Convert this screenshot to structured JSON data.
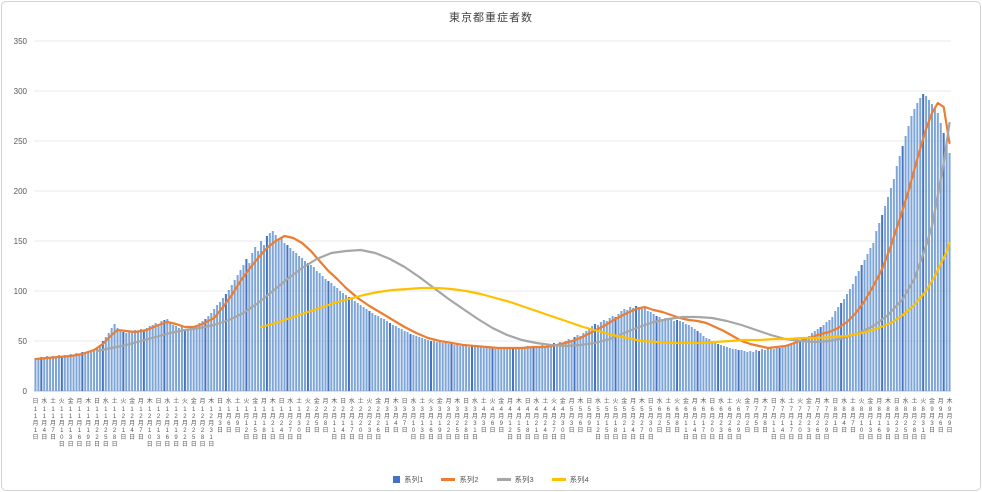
{
  "chart_data": {
    "type": "bar",
    "title": "東京都重症者数",
    "xlabel": "",
    "ylabel": "",
    "ylim": [
      0,
      350
    ],
    "y_ticks": [
      0,
      50,
      100,
      150,
      200,
      250,
      300,
      350
    ],
    "grid": true,
    "legend_position": "bottom",
    "x_label_step_days": 3,
    "x_label_weekdays": "日水土火金月木日水土火金月木日水土火金月木日水土火金月木日水土火金月木日水土火金月木日水土火金月木日水土火金月木日水土火金月木日水土火金月木日水土火金月木日水土火金月木日水土火金月木日水土火金月木日水土火金月木",
    "x_label_dates": [
      "11月1日",
      "11月4日",
      "11月7日",
      "11月10日",
      "11月13日",
      "11月16日",
      "11月19日",
      "11月22日",
      "11月25日",
      "11月28日",
      "12月1日",
      "12月4日",
      "12月7日",
      "12月10日",
      "12月13日",
      "12月16日",
      "12月19日",
      "12月22日",
      "12月25日",
      "12月28日",
      "12月31日",
      "1月3日",
      "1月6日",
      "1月9日",
      "1月12日",
      "1月15日",
      "1月18日",
      "1月21日",
      "1月24日",
      "1月27日",
      "1月30日",
      "2月2日",
      "2月5日",
      "2月8日",
      "2月11日",
      "2月14日",
      "2月17日",
      "2月20日",
      "2月23日",
      "2月26日",
      "3月1日",
      "3月4日",
      "3月7日",
      "3月10日",
      "3月13日",
      "3月16日",
      "3月19日",
      "3月22日",
      "3月25日",
      "3月28日",
      "3月31日",
      "4月3日",
      "4月6日",
      "4月9日",
      "4月12日",
      "4月15日",
      "4月18日",
      "4月21日",
      "4月24日",
      "4月27日",
      "4月30日",
      "5月3日",
      "5月6日",
      "5月9日",
      "5月12日",
      "5月15日",
      "5月18日",
      "5月21日",
      "5月24日",
      "5月27日",
      "5月30日",
      "6月2日",
      "6月5日",
      "6月8日",
      "6月11日",
      "6月14日",
      "6月17日",
      "6月20日",
      "6月23日",
      "6月26日",
      "6月29日",
      "7月2日",
      "7月5日",
      "7月8日",
      "7月11日",
      "7月14日",
      "7月17日",
      "7月20日",
      "7月23日",
      "7月26日",
      "7月29日",
      "8月1日",
      "8月4日",
      "8月7日",
      "8月10日",
      "8月13日",
      "8月16日",
      "8月19日",
      "8月22日",
      "8月25日",
      "8月28日",
      "8月31日",
      "9月3日",
      "9月6日",
      "9月9日"
    ],
    "series": [
      {
        "name": "系列1",
        "type": "bar",
        "color": "#7da5d8",
        "color_dark": "#4472c4",
        "values": [
          33,
          33,
          34,
          33,
          35,
          34,
          35,
          34,
          36,
          35,
          36,
          35,
          37,
          36,
          38,
          37,
          39,
          38,
          40,
          39,
          41,
          43,
          46,
          50,
          54,
          58,
          63,
          67,
          63,
          61,
          59,
          58,
          60,
          59,
          61,
          60,
          62,
          61,
          63,
          65,
          66,
          68,
          67,
          70,
          71,
          72,
          69,
          66,
          65,
          63,
          64,
          62,
          62,
          63,
          65,
          66,
          68,
          70,
          72,
          75,
          78,
          82,
          86,
          89,
          93,
          97,
          101,
          106,
          111,
          116,
          121,
          126,
          132,
          128,
          138,
          144,
          140,
          150,
          146,
          155,
          158,
          160,
          156,
          151,
          153,
          148,
          146,
          143,
          140,
          138,
          135,
          133,
          130,
          128,
          126,
          124,
          120,
          118,
          115,
          112,
          110,
          108,
          105,
          103,
          100,
          98,
          96,
          94,
          92,
          90,
          88,
          86,
          84,
          82,
          80,
          78,
          76,
          75,
          73,
          72,
          70,
          68,
          66,
          65,
          63,
          62,
          60,
          59,
          57,
          56,
          55,
          54,
          53,
          52,
          51,
          50,
          50,
          49,
          49,
          48,
          48,
          47,
          47,
          46,
          46,
          45,
          46,
          45,
          44,
          45,
          44,
          45,
          44,
          44,
          43,
          44,
          43,
          42,
          43,
          42,
          43,
          42,
          43,
          42,
          44,
          43,
          44,
          43,
          45,
          44,
          44,
          45,
          44,
          46,
          45,
          47,
          46,
          48,
          47,
          49,
          48,
          50,
          52,
          51,
          54,
          56,
          55,
          58,
          60,
          62,
          65,
          67,
          66,
          69,
          71,
          70,
          73,
          75,
          74,
          77,
          80,
          82,
          81,
          84,
          83,
          85,
          84,
          82,
          83,
          80,
          79,
          77,
          75,
          74,
          72,
          73,
          71,
          72,
          70,
          71,
          70,
          69,
          67,
          66,
          64,
          62,
          60,
          58,
          55,
          53,
          52,
          50,
          49,
          47,
          46,
          45,
          44,
          43,
          42,
          42,
          41,
          41,
          40,
          39,
          40,
          39,
          41,
          40,
          42,
          41,
          42,
          43,
          42,
          44,
          43,
          45,
          44,
          46,
          48,
          49,
          51,
          50,
          53,
          52,
          55,
          58,
          60,
          62,
          64,
          66,
          69,
          71,
          74,
          80,
          84,
          88,
          92,
          97,
          102,
          107,
          115,
          120,
          126,
          131,
          137,
          143,
          148,
          160,
          168,
          176,
          185,
          194,
          203,
          212,
          225,
          235,
          245,
          255,
          265,
          275,
          282,
          288,
          293,
          297,
          295,
          291,
          287,
          283,
          278,
          268,
          258,
          248,
          238
        ]
      },
      {
        "name": "系列2",
        "type": "line",
        "color": "#ed7d31",
        "points": [
          [
            0,
            32
          ],
          [
            4,
            33
          ],
          [
            8,
            34
          ],
          [
            12,
            35
          ],
          [
            16,
            37
          ],
          [
            20,
            41
          ],
          [
            23,
            47
          ],
          [
            26,
            56
          ],
          [
            28,
            61
          ],
          [
            31,
            60
          ],
          [
            34,
            59
          ],
          [
            38,
            61
          ],
          [
            42,
            66
          ],
          [
            45,
            69
          ],
          [
            48,
            67
          ],
          [
            51,
            64
          ],
          [
            54,
            64
          ],
          [
            57,
            67
          ],
          [
            61,
            73
          ],
          [
            64,
            84
          ],
          [
            67,
            96
          ],
          [
            70,
            110
          ],
          [
            73,
            122
          ],
          [
            76,
            133
          ],
          [
            79,
            143
          ],
          [
            82,
            150
          ],
          [
            85,
            155
          ],
          [
            88,
            153
          ],
          [
            91,
            148
          ],
          [
            94,
            140
          ],
          [
            97,
            130
          ],
          [
            100,
            120
          ],
          [
            103,
            112
          ],
          [
            106,
            103
          ],
          [
            110,
            93
          ],
          [
            114,
            85
          ],
          [
            118,
            78
          ],
          [
            122,
            71
          ],
          [
            126,
            64
          ],
          [
            130,
            58
          ],
          [
            134,
            53
          ],
          [
            138,
            50
          ],
          [
            142,
            48
          ],
          [
            146,
            46
          ],
          [
            150,
            45
          ],
          [
            154,
            44
          ],
          [
            158,
            43
          ],
          [
            162,
            43
          ],
          [
            166,
            43
          ],
          [
            170,
            44
          ],
          [
            174,
            44
          ],
          [
            178,
            46
          ],
          [
            182,
            49
          ],
          [
            186,
            53
          ],
          [
            190,
            59
          ],
          [
            194,
            65
          ],
          [
            198,
            72
          ],
          [
            202,
            78
          ],
          [
            205,
            82
          ],
          [
            208,
            84
          ],
          [
            211,
            81
          ],
          [
            214,
            79
          ],
          [
            217,
            76
          ],
          [
            220,
            73
          ],
          [
            223,
            71
          ],
          [
            226,
            70
          ],
          [
            229,
            68
          ],
          [
            232,
            64
          ],
          [
            235,
            60
          ],
          [
            238,
            55
          ],
          [
            241,
            50
          ],
          [
            244,
            47
          ],
          [
            247,
            45
          ],
          [
            250,
            43
          ],
          [
            253,
            44
          ],
          [
            256,
            45
          ],
          [
            259,
            48
          ],
          [
            262,
            51
          ],
          [
            265,
            54
          ],
          [
            268,
            57
          ],
          [
            271,
            59
          ],
          [
            274,
            63
          ],
          [
            277,
            69
          ],
          [
            280,
            78
          ],
          [
            283,
            90
          ],
          [
            286,
            105
          ],
          [
            289,
            122
          ],
          [
            292,
            145
          ],
          [
            295,
            172
          ],
          [
            298,
            200
          ],
          [
            301,
            232
          ],
          [
            304,
            262
          ],
          [
            306,
            278
          ],
          [
            308,
            288
          ],
          [
            310,
            284
          ],
          [
            312,
            248
          ]
        ]
      },
      {
        "name": "系列3",
        "type": "line",
        "color": "#a6a6a6",
        "points": [
          [
            21,
            40
          ],
          [
            26,
            43
          ],
          [
            31,
            46
          ],
          [
            36,
            50
          ],
          [
            41,
            54
          ],
          [
            46,
            58
          ],
          [
            51,
            61
          ],
          [
            56,
            63
          ],
          [
            61,
            66
          ],
          [
            66,
            71
          ],
          [
            71,
            78
          ],
          [
            76,
            88
          ],
          [
            81,
            100
          ],
          [
            86,
            112
          ],
          [
            91,
            123
          ],
          [
            96,
            132
          ],
          [
            101,
            138
          ],
          [
            106,
            140
          ],
          [
            111,
            141
          ],
          [
            116,
            138
          ],
          [
            121,
            132
          ],
          [
            126,
            124
          ],
          [
            131,
            114
          ],
          [
            136,
            103
          ],
          [
            141,
            92
          ],
          [
            146,
            82
          ],
          [
            151,
            72
          ],
          [
            156,
            63
          ],
          [
            161,
            56
          ],
          [
            166,
            51
          ],
          [
            171,
            48
          ],
          [
            176,
            46
          ],
          [
            181,
            45
          ],
          [
            186,
            46
          ],
          [
            191,
            48
          ],
          [
            196,
            52
          ],
          [
            201,
            58
          ],
          [
            206,
            64
          ],
          [
            211,
            69
          ],
          [
            216,
            72
          ],
          [
            221,
            74
          ],
          [
            226,
            74
          ],
          [
            231,
            73
          ],
          [
            236,
            70
          ],
          [
            241,
            66
          ],
          [
            246,
            61
          ],
          [
            251,
            56
          ],
          [
            256,
            52
          ],
          [
            261,
            50
          ],
          [
            266,
            49
          ],
          [
            271,
            50
          ],
          [
            276,
            53
          ],
          [
            281,
            58
          ],
          [
            286,
            65
          ],
          [
            291,
            76
          ],
          [
            296,
            92
          ],
          [
            300,
            112
          ],
          [
            304,
            145
          ],
          [
            306,
            165
          ],
          [
            308,
            196
          ],
          [
            310,
            228
          ],
          [
            312,
            268
          ]
        ]
      },
      {
        "name": "系列4",
        "type": "line",
        "color": "#ffc000",
        "points": [
          [
            77,
            64
          ],
          [
            82,
            68
          ],
          [
            87,
            73
          ],
          [
            92,
            78
          ],
          [
            97,
            83
          ],
          [
            102,
            88
          ],
          [
            107,
            92
          ],
          [
            112,
            96
          ],
          [
            117,
            99
          ],
          [
            122,
            101
          ],
          [
            127,
            102
          ],
          [
            132,
            103
          ],
          [
            137,
            103
          ],
          [
            142,
            102
          ],
          [
            147,
            100
          ],
          [
            152,
            97
          ],
          [
            157,
            93
          ],
          [
            162,
            89
          ],
          [
            167,
            84
          ],
          [
            172,
            79
          ],
          [
            177,
            74
          ],
          [
            182,
            69
          ],
          [
            187,
            64
          ],
          [
            192,
            60
          ],
          [
            197,
            56
          ],
          [
            202,
            53
          ],
          [
            207,
            50
          ],
          [
            212,
            49
          ],
          [
            217,
            48
          ],
          [
            222,
            48
          ],
          [
            227,
            48
          ],
          [
            232,
            49
          ],
          [
            237,
            50
          ],
          [
            242,
            51
          ],
          [
            247,
            51
          ],
          [
            252,
            52
          ],
          [
            257,
            52
          ],
          [
            262,
            53
          ],
          [
            267,
            53
          ],
          [
            272,
            54
          ],
          [
            277,
            55
          ],
          [
            282,
            58
          ],
          [
            287,
            62
          ],
          [
            292,
            68
          ],
          [
            296,
            76
          ],
          [
            300,
            86
          ],
          [
            304,
            100
          ],
          [
            307,
            115
          ],
          [
            309,
            127
          ],
          [
            311,
            139
          ],
          [
            312,
            148
          ]
        ]
      }
    ],
    "colors": {
      "gridline": "#e8e8e8",
      "axis": "#bfbfbf",
      "tick_text": "#595959",
      "title_text": "#404040",
      "frame_border": "#d2d2d2"
    }
  }
}
